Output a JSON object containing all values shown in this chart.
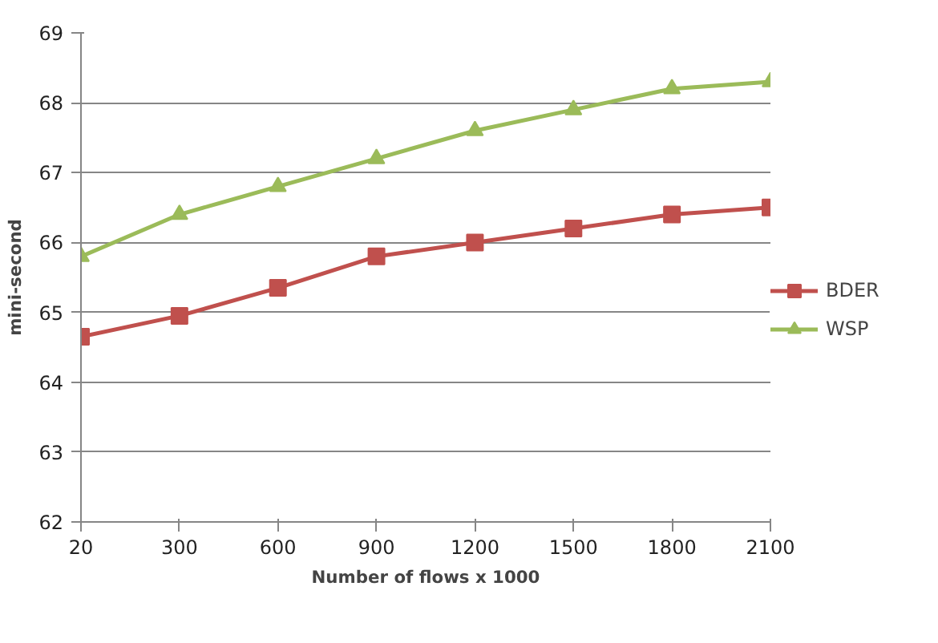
{
  "chart_data": {
    "type": "line",
    "xlabel": "Number of flows x 1000",
    "ylabel": "mini-second",
    "categories": [
      "20",
      "300",
      "600",
      "900",
      "1200",
      "1500",
      "1800",
      "2100"
    ],
    "series": [
      {
        "name": "BDER",
        "color": "#c0504d",
        "marker": "square",
        "values": [
          64.65,
          64.95,
          65.35,
          65.8,
          66.0,
          66.2,
          66.4,
          66.5
        ]
      },
      {
        "name": "WSP",
        "color": "#9bbb59",
        "marker": "triangle",
        "values": [
          65.8,
          66.4,
          66.8,
          67.2,
          67.6,
          67.9,
          68.2,
          68.3
        ]
      }
    ],
    "ylim": [
      62,
      69
    ],
    "yticks": [
      62,
      63,
      64,
      65,
      66,
      67,
      68,
      69
    ],
    "grid": "y",
    "legend": "right"
  }
}
